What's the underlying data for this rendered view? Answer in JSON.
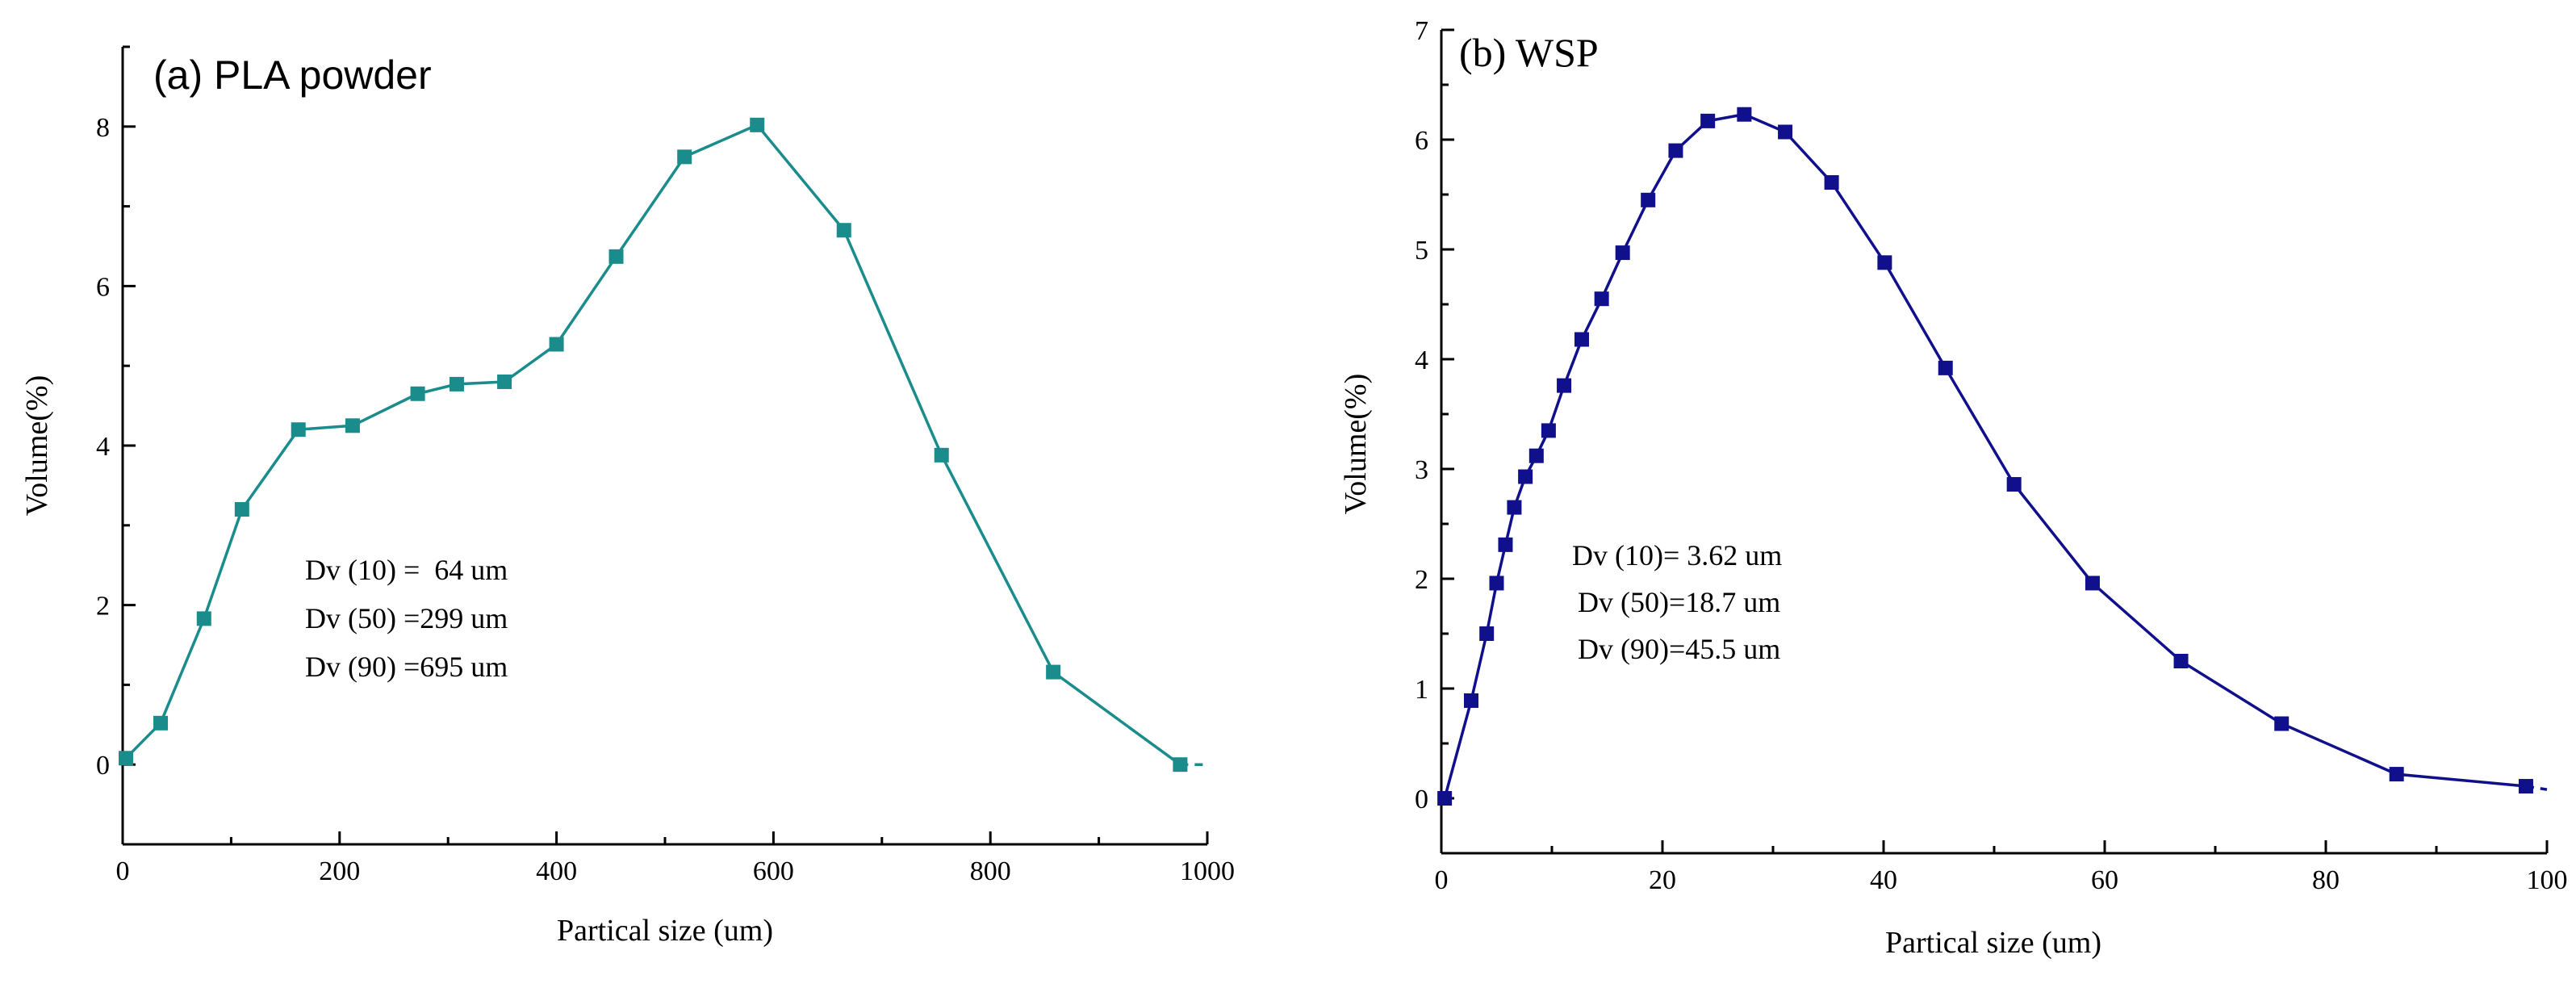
{
  "chart_data": [
    {
      "type": "line",
      "title": "(a) PLA powder",
      "xlabel": "Partical size (um)",
      "ylabel": "Volume(%)",
      "xlim": [
        0,
        1000
      ],
      "ylim": [
        -1,
        9
      ],
      "xticks": [
        0,
        200,
        400,
        600,
        800,
        1000
      ],
      "yticks": [
        0,
        2,
        4,
        6,
        8
      ],
      "color": "#1a8c8c",
      "series": [
        {
          "name": "PLA powder",
          "x": [
            3,
            35,
            75,
            110,
            162,
            212,
            272,
            308,
            352,
            400,
            455,
            518,
            585,
            665,
            755,
            858,
            975
          ],
          "y": [
            0.08,
            0.52,
            1.83,
            3.2,
            4.2,
            4.25,
            4.65,
            4.77,
            4.8,
            5.27,
            6.37,
            7.62,
            8.02,
            6.7,
            3.88,
            1.16,
            0.0
          ]
        }
      ],
      "tail": [
        1000,
        0.0
      ],
      "annotations": [
        "Dv (10) =  64 um",
        "Dv (50) =299 um",
        "Dv (90) =695 um"
      ]
    },
    {
      "type": "line",
      "title": "(b) WSP",
      "xlabel": "Partical size (um)",
      "ylabel": "Volume(%)",
      "xlim": [
        0,
        100
      ],
      "ylim": [
        -0.5,
        7
      ],
      "xticks": [
        0,
        20,
        40,
        60,
        80,
        100
      ],
      "yticks": [
        0,
        1,
        2,
        3,
        4,
        5,
        6,
        7
      ],
      "color": "#10108c",
      "series": [
        {
          "name": "WSP",
          "x": [
            0.3,
            2.7,
            4.1,
            5.0,
            5.8,
            6.6,
            7.6,
            8.6,
            9.7,
            11.1,
            12.7,
            14.5,
            16.4,
            18.7,
            21.2,
            24.1,
            27.4,
            31.1,
            35.3,
            40.1,
            45.6,
            51.8,
            58.9,
            66.9,
            76.0,
            86.4,
            98.1
          ],
          "y": [
            0.0,
            0.89,
            1.5,
            1.96,
            2.31,
            2.65,
            2.93,
            3.12,
            3.35,
            3.76,
            4.18,
            4.55,
            4.97,
            5.45,
            5.9,
            6.17,
            6.23,
            6.07,
            5.61,
            4.88,
            3.92,
            2.86,
            1.96,
            1.25,
            0.68,
            0.22,
            0.11
          ]
        }
      ],
      "tail": [
        100,
        0.08
      ],
      "annotations": [
        "Dv (10)= 3.62 um",
        "Dv (50)=18.7 um",
        "Dv (90)=45.5 um"
      ]
    }
  ]
}
